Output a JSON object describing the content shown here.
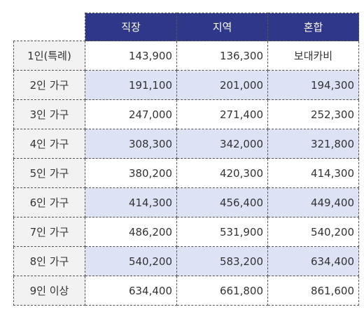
{
  "header": {
    "col1": "직장",
    "col2": "지역",
    "col3": "혼합"
  },
  "rows": [
    {
      "label": "1인(특례)",
      "v1": "143,900",
      "v2": "136,300",
      "v3": "보대카비"
    },
    {
      "label": "2인 가구",
      "v1": "191,100",
      "v2": "201,000",
      "v3": "194,300"
    },
    {
      "label": "3인 가구",
      "v1": "247,000",
      "v2": "271,400",
      "v3": "252,300"
    },
    {
      "label": "4인 가구",
      "v1": "308,300",
      "v2": "342,000",
      "v3": "321,800"
    },
    {
      "label": "5인 가구",
      "v1": "380,200",
      "v2": "420,300",
      "v3": "414,300"
    },
    {
      "label": "6인 가구",
      "v1": "414,300",
      "v2": "456,400",
      "v3": "449,400"
    },
    {
      "label": "7인 가구",
      "v1": "486,200",
      "v2": "531,900",
      "v3": "540,200"
    },
    {
      "label": "8인 가구",
      "v1": "540,200",
      "v2": "583,200",
      "v3": "634,400"
    },
    {
      "label": "9인 이상",
      "v1": "634,400",
      "v2": "661,800",
      "v3": "861,600"
    }
  ],
  "colors": {
    "header_bg": "#2f3788",
    "row_shade": "#dde2f5",
    "label_bg": "#f2f2f2"
  }
}
